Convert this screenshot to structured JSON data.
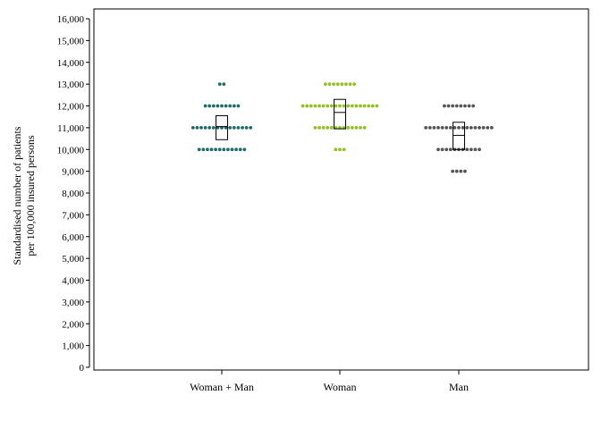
{
  "chart_data": {
    "type": "scatter",
    "subtype": "dot-strip-plot-with-boxes",
    "ylabel_lines": [
      "Standardised number of patients",
      "per 100,000 insured persons"
    ],
    "xlabel": "",
    "ylim": [
      0,
      16000
    ],
    "yticks": [
      0,
      1000,
      2000,
      3000,
      4000,
      5000,
      6000,
      7000,
      8000,
      9000,
      10000,
      11000,
      12000,
      13000,
      14000,
      15000,
      16000
    ],
    "ytick_labels": [
      "0",
      "1,000",
      "2,000",
      "3,000",
      "4,000",
      "5,000",
      "6,000",
      "7,000",
      "8,000",
      "9,000",
      "10,000",
      "11,000",
      "12,000",
      "13,000",
      "14,000",
      "15,000",
      "16,000"
    ],
    "categories": [
      "Woman + Man",
      "Woman",
      "Man"
    ],
    "grid": false,
    "legend": "none",
    "series": [
      {
        "category": "Woman + Man",
        "color": "#1e6b6b",
        "dot_rows": [
          {
            "y": 13000,
            "count": 2
          },
          {
            "y": 12000,
            "count": 9
          },
          {
            "y": 11000,
            "count": 15
          },
          {
            "y": 10000,
            "count": 12
          }
        ],
        "box": {
          "q1": 10450,
          "median": 11050,
          "q3": 11550
        }
      },
      {
        "category": "Woman",
        "color": "#8fc21d",
        "dot_rows": [
          {
            "y": 13000,
            "count": 8
          },
          {
            "y": 12000,
            "count": 19
          },
          {
            "y": 11000,
            "count": 13
          },
          {
            "y": 10000,
            "count": 3
          }
        ],
        "box": {
          "q1": 10950,
          "median": 11700,
          "q3": 12300
        }
      },
      {
        "category": "Man",
        "color": "#555555",
        "dot_rows": [
          {
            "y": 12000,
            "count": 8
          },
          {
            "y": 11000,
            "count": 17
          },
          {
            "y": 10000,
            "count": 11
          },
          {
            "y": 9000,
            "count": 4
          }
        ],
        "box": {
          "q1": 10000,
          "median": 10650,
          "q3": 11250
        }
      }
    ]
  }
}
